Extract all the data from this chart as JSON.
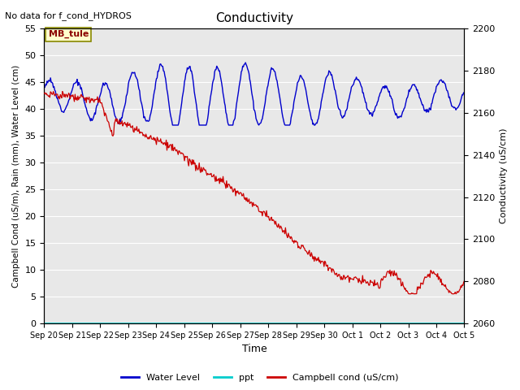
{
  "title": "Conductivity",
  "top_left_text": "No data for f_cond_HYDROS",
  "annotation_box": "MB_tule",
  "xlabel": "Time",
  "ylabel_left": "Campbell Cond (uS/m), Rain (mm), Water Level (cm)",
  "ylabel_right": "Conductivity (uS/cm)",
  "ylim_left": [
    0,
    55
  ],
  "ylim_right": [
    2060,
    2200
  ],
  "xtick_labels": [
    "Sep 20",
    "Sep 21",
    "Sep 22",
    "Sep 23",
    "Sep 24",
    "Sep 25",
    "Sep 26",
    "Sep 27",
    "Sep 28",
    "Sep 29",
    "Sep 30",
    "Oct 1",
    "Oct 2",
    "Oct 3",
    "Oct 4",
    "Oct 5"
  ],
  "ytick_left": [
    0,
    5,
    10,
    15,
    20,
    25,
    30,
    35,
    40,
    45,
    50,
    55
  ],
  "ytick_right": [
    2060,
    2080,
    2100,
    2120,
    2140,
    2160,
    2180,
    2200
  ],
  "bg_color": "#e8e8e8",
  "water_level_color": "#0000cc",
  "ppt_color": "#00cccc",
  "campbell_cond_color": "#cc0000",
  "legend_labels": [
    "Water Level",
    "ppt",
    "Campbell cond (uS/cm)"
  ],
  "legend_colors": [
    "#0000cc",
    "#00cccc",
    "#cc0000"
  ],
  "figsize": [
    6.4,
    4.8
  ],
  "dpi": 100
}
